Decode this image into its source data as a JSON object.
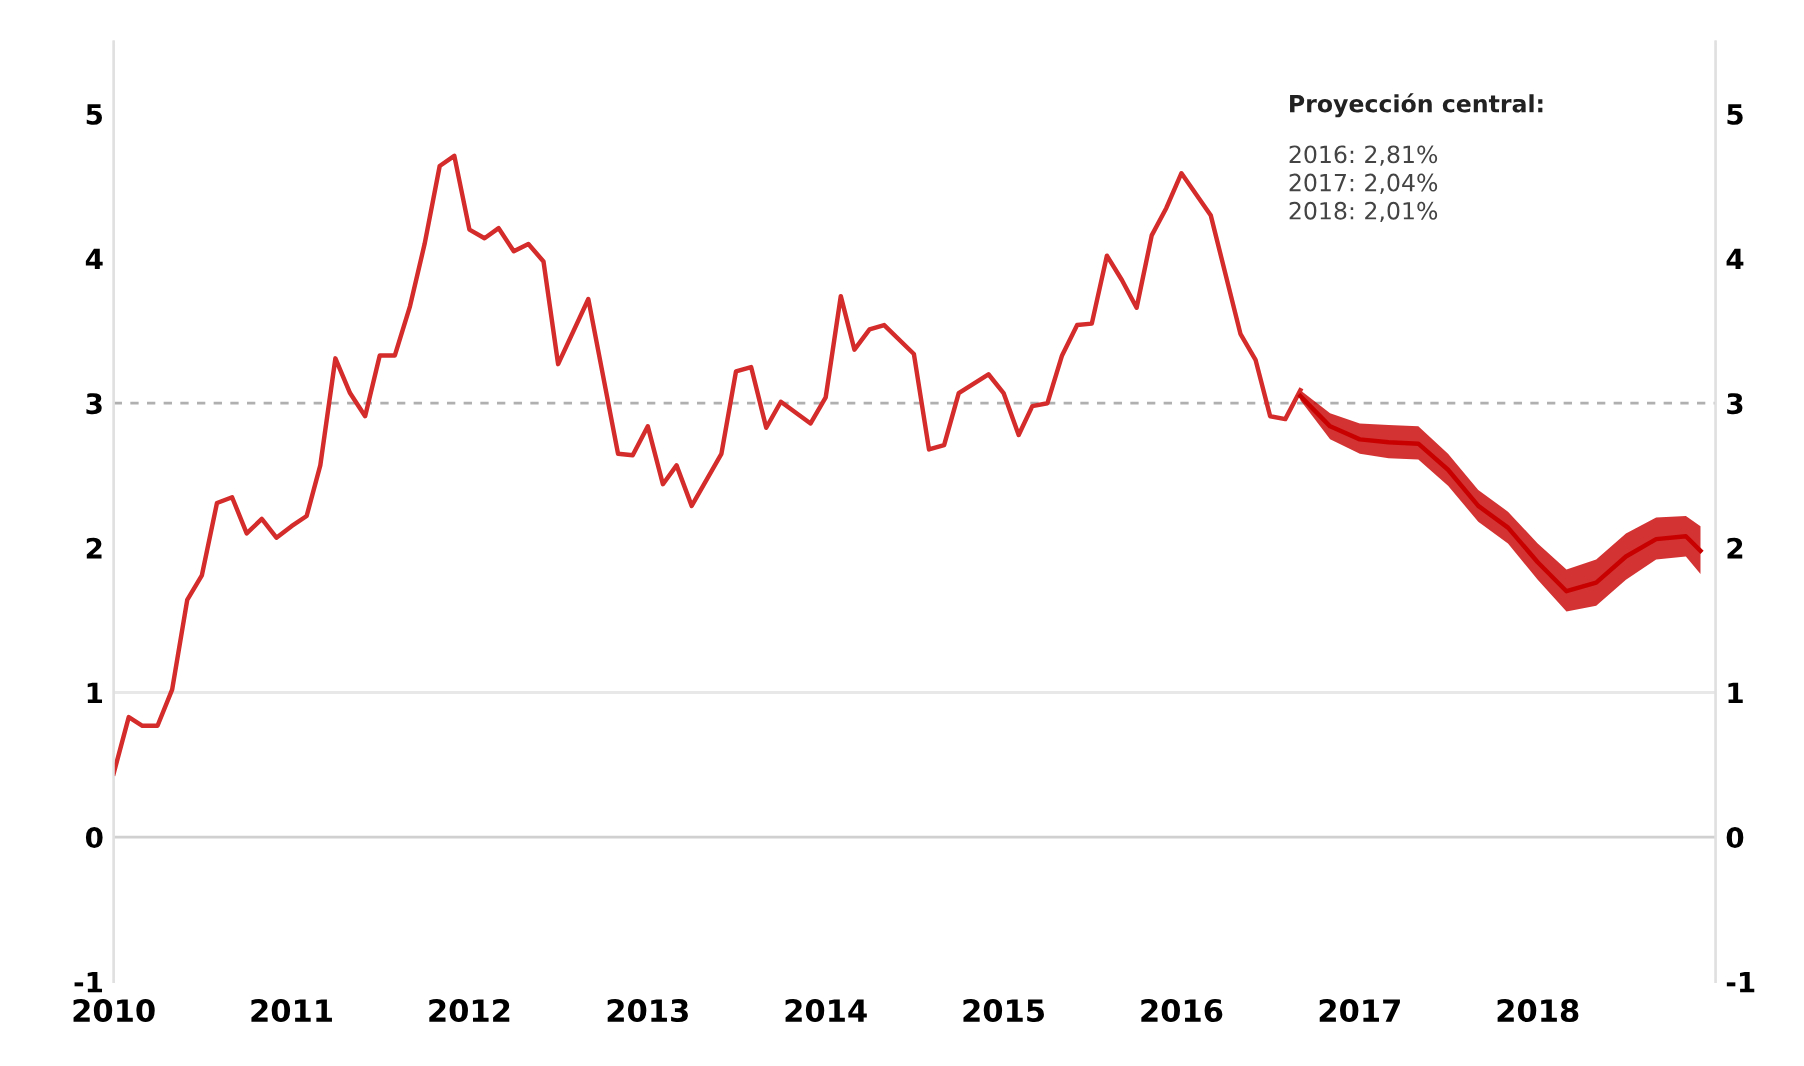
{
  "chart_data": {
    "type": "line",
    "series": [
      {
        "color": "#d42b2b",
        "x": [
          "2010-01",
          "2010-02",
          "2010-03",
          "2010-04",
          "2010-05",
          "2010-06",
          "2010-07",
          "2010-08",
          "2010-09",
          "2010-10",
          "2010-11",
          "2010-12",
          "2011-01",
          "2011-02",
          "2011-03",
          "2011-04",
          "2011-05",
          "2011-06",
          "2011-07",
          "2011-08",
          "2011-09",
          "2011-10",
          "2011-11",
          "2011-12",
          "2012-01",
          "2012-02",
          "2012-03",
          "2012-04",
          "2012-05",
          "2012-06",
          "2012-07",
          "2012-09",
          "2012-11",
          "2012-12",
          "2013-01",
          "2013-02",
          "2013-03",
          "2013-04",
          "2013-06",
          "2013-07",
          "2013-08",
          "2013-09",
          "2013-10",
          "2013-12",
          "2014-01",
          "2014-02",
          "2014-03",
          "2014-04",
          "2014-05",
          "2014-07",
          "2014-08",
          "2014-09",
          "2014-10",
          "2014-12",
          "2015-01",
          "2015-02",
          "2015-03",
          "2015-04",
          "2015-05",
          "2015-06",
          "2015-07",
          "2015-08",
          "2015-09",
          "2015-10",
          "2015-11",
          "2015-12",
          "2016-01",
          "2016-03",
          "2016-05",
          "2016-06",
          "2016-07",
          "2016-08",
          "2016-09"
        ],
        "values": [
          0.44,
          0.83,
          0.77,
          0.77,
          1.02,
          1.64,
          1.81,
          2.31,
          2.35,
          2.1,
          2.2,
          2.07,
          2.15,
          2.22,
          2.57,
          3.31,
          3.07,
          2.91,
          3.33,
          3.33,
          3.67,
          4.1,
          4.64,
          4.71,
          4.2,
          4.14,
          4.21,
          4.05,
          4.1,
          3.98,
          3.27,
          3.72,
          2.65,
          2.64,
          2.84,
          2.44,
          2.57,
          2.29,
          2.65,
          3.22,
          3.25,
          2.83,
          3.01,
          2.86,
          3.04,
          3.74,
          3.37,
          3.51,
          3.54,
          3.34,
          2.68,
          2.71,
          3.07,
          3.2,
          3.07,
          2.78,
          2.98,
          3.0,
          3.33,
          3.54,
          3.55,
          4.02,
          3.85,
          3.66,
          4.16,
          4.35,
          4.59,
          4.3,
          3.48,
          3.3,
          2.91,
          2.89,
          3.09
        ]
      },
      {
        "color": "#c80000",
        "x": [
          "2016-09",
          "2016-11",
          "2017-01",
          "2017-03",
          "2017-05",
          "2017-07",
          "2017-09",
          "2017-11",
          "2018-01",
          "2018-03",
          "2018-05",
          "2018-07",
          "2018-09",
          "2018-11",
          "2018-12"
        ],
        "values": [
          3.05,
          2.84,
          2.75,
          2.73,
          2.72,
          2.54,
          2.29,
          2.14,
          1.9,
          1.7,
          1.76,
          1.94,
          2.06,
          2.08,
          1.98
        ],
        "lower": [
          3.02,
          2.75,
          2.65,
          2.62,
          2.61,
          2.43,
          2.18,
          2.03,
          1.78,
          1.56,
          1.6,
          1.78,
          1.92,
          1.94,
          1.82
        ],
        "upper": [
          3.09,
          2.93,
          2.86,
          2.85,
          2.84,
          2.65,
          2.4,
          2.25,
          2.03,
          1.85,
          1.92,
          2.1,
          2.21,
          2.22,
          2.15
        ]
      }
    ],
    "xlim": [
      "2010",
      "2019"
    ],
    "xticks": [
      "2010",
      "2011",
      "2012",
      "2013",
      "2014",
      "2015",
      "2016",
      "2017",
      "2018"
    ],
    "ylim": [
      -1,
      5.5
    ],
    "yticks": [
      -1,
      0,
      1,
      2,
      3,
      4,
      5
    ],
    "y2lim": [
      -1,
      5.5
    ],
    "y2ticks": [
      -1,
      0,
      1,
      2,
      3,
      4,
      5
    ],
    "ref_lines": [
      {
        "axis": "y",
        "value": 3,
        "color": "#b0b0b0",
        "line_style": "dashed"
      },
      {
        "axis": "y",
        "value": 1,
        "color": "#e8e8e8",
        "line_style": "solid"
      },
      {
        "axis": "y",
        "value": 0,
        "color": "#d0d0d0",
        "line_style": "solid"
      }
    ],
    "annotations": [
      "Proyección central:",
      "2016: 2,81%",
      "2017: 2,04%",
      "2018: 2,01%"
    ],
    "legend": false,
    "grid": false
  }
}
